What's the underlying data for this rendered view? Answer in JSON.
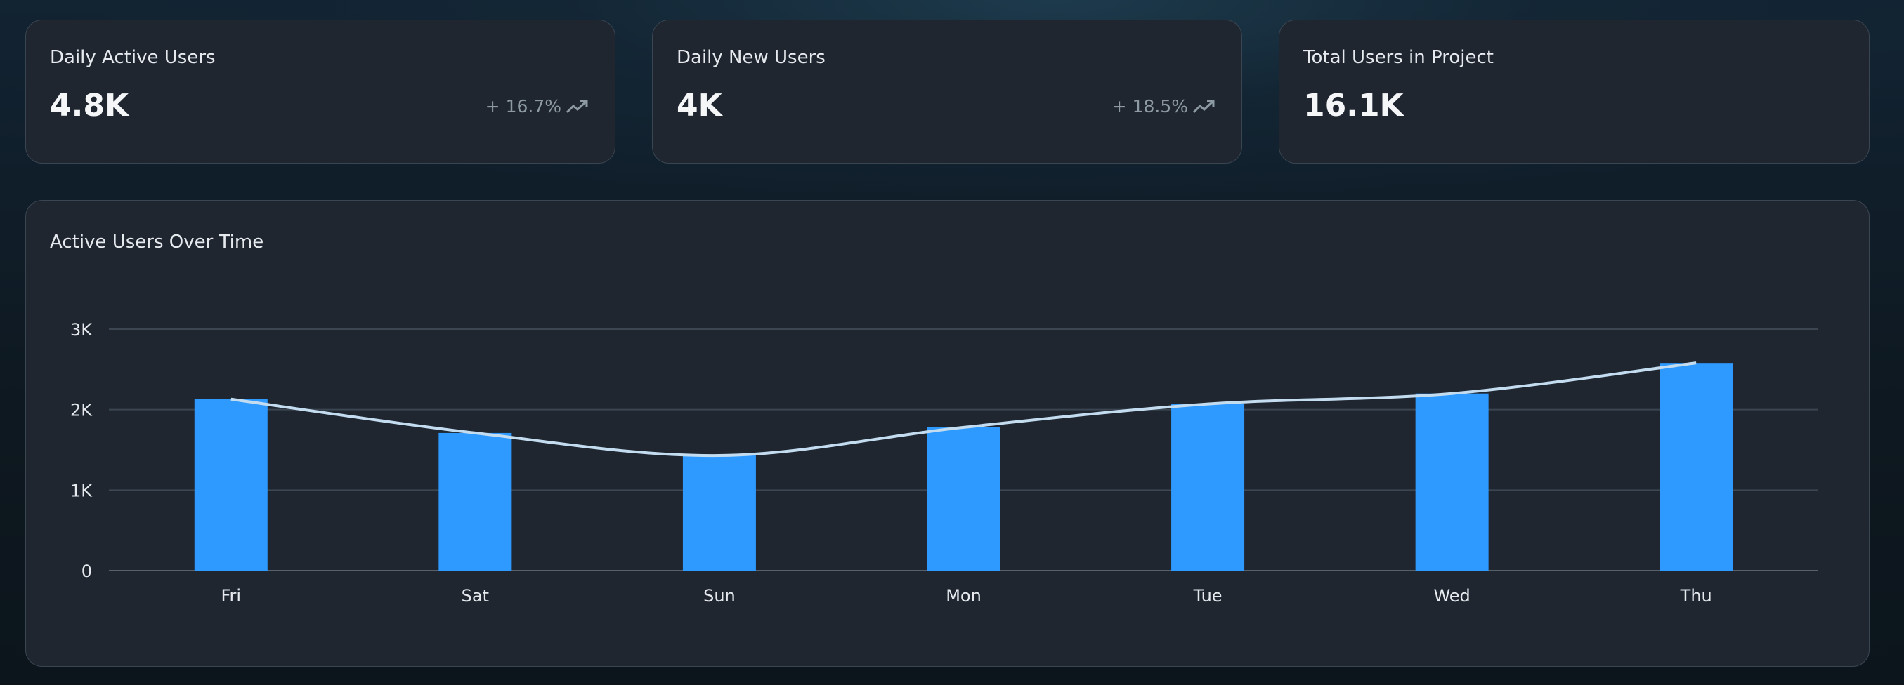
{
  "stats": [
    {
      "label": "Daily Active Users",
      "value": "4.8K",
      "delta": "+ 16.7%",
      "trend_icon": "trending-up-icon"
    },
    {
      "label": "Daily New Users",
      "value": "4K",
      "delta": "+ 18.5%",
      "trend_icon": "trending-up-icon"
    },
    {
      "label": "Total Users in Project",
      "value": "16.1K"
    }
  ],
  "chart_title": "Active Users Over Time",
  "chart_data": {
    "type": "bar",
    "title": "Active Users Over Time",
    "categories": [
      "Fri",
      "Sat",
      "Sun",
      "Mon",
      "Tue",
      "Wed",
      "Thu"
    ],
    "values": [
      2130,
      1710,
      1430,
      1780,
      2070,
      2200,
      2580
    ],
    "overlay": "smooth line through bar values",
    "ylim": [
      0,
      3000
    ],
    "yticks": [
      0,
      1000,
      2000,
      3000
    ],
    "ytick_labels": [
      "0",
      "1K",
      "2K",
      "3K"
    ],
    "grid": true,
    "colors": {
      "bar": "#2e9aff",
      "line": "#c4dcf0",
      "grid": "#3b4652"
    }
  }
}
